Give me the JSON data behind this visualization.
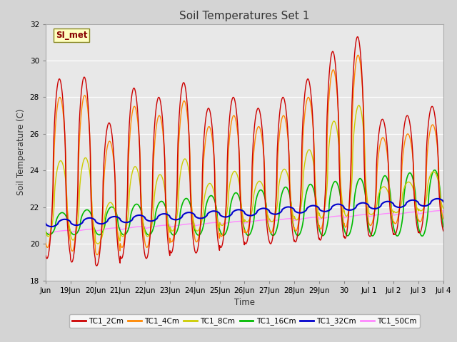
{
  "title": "Soil Temperatures Set 1",
  "ylabel": "Soil Temperature (C)",
  "xlabel": "Time",
  "ylim": [
    18,
    32
  ],
  "annotation": "SI_met",
  "fig_bg": "#d4d4d4",
  "plot_bg": "#e8e8e8",
  "series": {
    "TC1_2Cm": {
      "color": "#cc0000",
      "lw": 1.0
    },
    "TC1_4Cm": {
      "color": "#ff8800",
      "lw": 1.0
    },
    "TC1_8Cm": {
      "color": "#cccc00",
      "lw": 1.0
    },
    "TC1_16Cm": {
      "color": "#00bb00",
      "lw": 1.2
    },
    "TC1_32Cm": {
      "color": "#0000cc",
      "lw": 1.5
    },
    "TC1_50Cm": {
      "color": "#ff88ff",
      "lw": 1.0
    }
  },
  "xtick_labels": [
    "Jun",
    "19Jun",
    "20Jun",
    "21Jun",
    "22Jun",
    "23Jun",
    "24Jun",
    "25Jun",
    "26Jun",
    "27Jun",
    "28Jun",
    "29Jun",
    "30",
    "Jul 1",
    "Jul 2",
    "Jul 3",
    "Jul 4"
  ],
  "xtick_positions": [
    0,
    1,
    2,
    3,
    4,
    5,
    6,
    7,
    8,
    9,
    10,
    11,
    12,
    13,
    14,
    15,
    16
  ],
  "peak_2cm": [
    29.0,
    29.1,
    26.6,
    28.5,
    28.0,
    28.8,
    27.4,
    28.0,
    27.4,
    28.0,
    29.0,
    30.5,
    31.3,
    26.8,
    27.0,
    27.5
  ],
  "min_2cm": [
    19.2,
    19.0,
    18.8,
    19.2,
    19.2,
    19.5,
    19.5,
    19.8,
    20.0,
    20.0,
    20.1,
    20.2,
    20.3,
    20.4,
    20.5,
    20.6
  ]
}
